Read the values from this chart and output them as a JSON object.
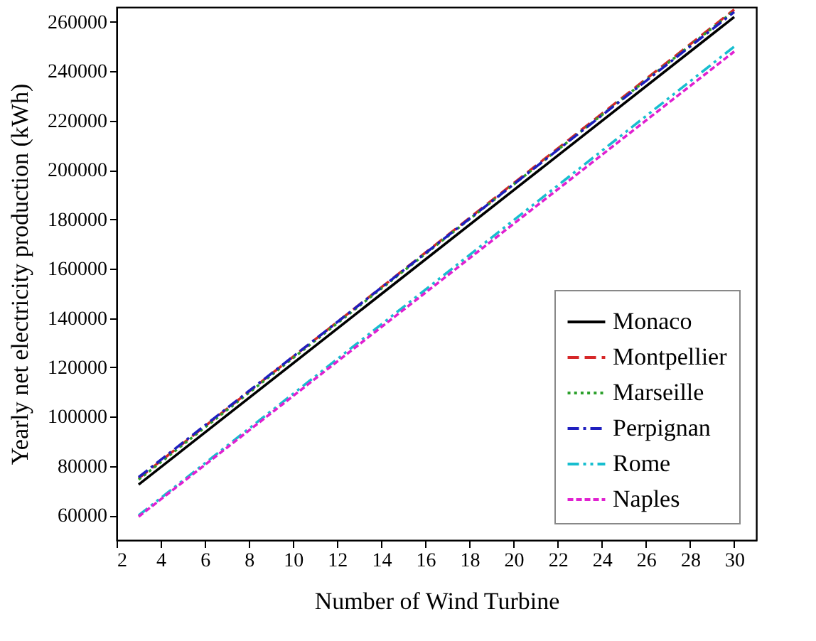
{
  "chart_data": {
    "type": "line",
    "xlabel": "Number of Wind Turbine",
    "ylabel": "Yearly net electricity production (kWh)",
    "x": [
      3,
      30
    ],
    "xlim": [
      2,
      31
    ],
    "xticks": [
      2,
      4,
      6,
      8,
      10,
      12,
      14,
      16,
      18,
      20,
      22,
      24,
      26,
      28,
      30
    ],
    "ylim": [
      50000,
      266000
    ],
    "yticks": [
      60000,
      80000,
      100000,
      120000,
      140000,
      160000,
      180000,
      200000,
      220000,
      240000,
      260000
    ],
    "grid": false,
    "legend": "bottom right",
    "marker": "none",
    "series": [
      {
        "name": "Monaco",
        "color": "#000000",
        "line_style": "solid",
        "values": [
          72500,
          262000
        ]
      },
      {
        "name": "Montpellier",
        "color": "#d62728",
        "line_style": "dashed",
        "values": [
          75000,
          265000
        ]
      },
      {
        "name": "Marseille",
        "color": "#2ca02c",
        "line_style": "dotted",
        "values": [
          74500,
          264500
        ]
      },
      {
        "name": "Perpignan",
        "color": "#1f1fbf",
        "line_style": "dashdot",
        "values": [
          75500,
          264000
        ]
      },
      {
        "name": "Rome",
        "color": "#17becf",
        "line_style": "dashdotdot",
        "values": [
          60000,
          250000
        ]
      },
      {
        "name": "Naples",
        "color": "#e020d0",
        "line_style": "shortdash",
        "values": [
          59500,
          248000
        ]
      }
    ]
  }
}
